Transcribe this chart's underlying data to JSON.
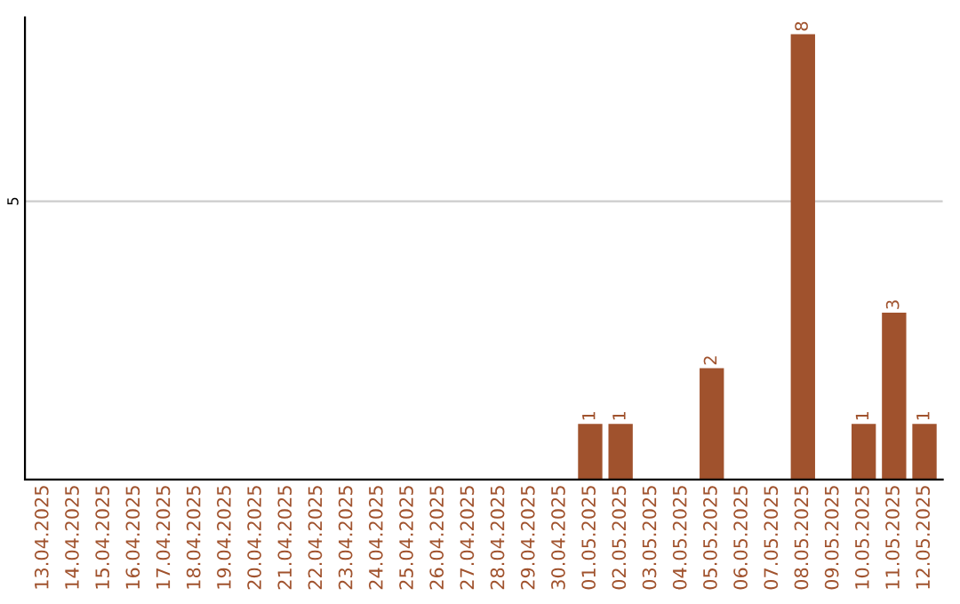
{
  "chart_data": {
    "type": "bar",
    "categories": [
      "13.04.2025",
      "14.04.2025",
      "15.04.2025",
      "16.04.2025",
      "17.04.2025",
      "18.04.2025",
      "19.04.2025",
      "20.04.2025",
      "21.04.2025",
      "22.04.2025",
      "23.04.2025",
      "24.04.2025",
      "25.04.2025",
      "26.04.2025",
      "27.04.2025",
      "28.04.2025",
      "29.04.2025",
      "30.04.2025",
      "01.05.2025",
      "02.05.2025",
      "03.05.2025",
      "04.05.2025",
      "05.05.2025",
      "06.05.2025",
      "07.05.2025",
      "08.05.2025",
      "09.05.2025",
      "10.05.2025",
      "11.05.2025",
      "12.05.2025"
    ],
    "values": [
      null,
      null,
      null,
      null,
      null,
      null,
      null,
      null,
      null,
      null,
      null,
      null,
      null,
      null,
      null,
      null,
      null,
      null,
      1,
      1,
      null,
      null,
      2,
      null,
      null,
      8,
      null,
      1,
      3,
      1
    ],
    "data_labels": true,
    "color": "#a0522d",
    "ylim": [
      0,
      8.3
    ],
    "ref_lines": [
      {
        "axis": "y",
        "value": 5,
        "label": "5",
        "color": "#cccccc"
      }
    ]
  }
}
